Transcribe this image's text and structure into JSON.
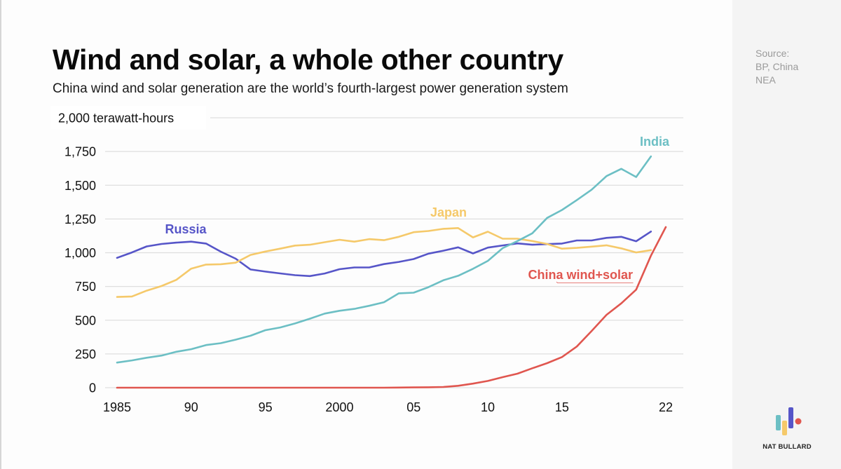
{
  "page": {
    "title": "Wind and solar, a whole other country",
    "subtitle": "China wind and solar generation are the world’s fourth-largest power generation system",
    "source_lines": [
      "Source:",
      "BP, China",
      "NEA"
    ],
    "brand": "NAT BULLARD",
    "brand_colors": [
      "#6cbfc4",
      "#f5c96a",
      "#5655c8",
      "#e0564f"
    ]
  },
  "chart_data": {
    "type": "line",
    "title": "Wind and solar, a whole other country",
    "subtitle": "China wind and solar generation are the world’s fourth-largest power generation system",
    "xlabel": "",
    "ylabel": "terawatt-hours",
    "unit_label": "2,000 terawatt-hours",
    "ylim": [
      0,
      2000
    ],
    "xlim": [
      1985,
      2022
    ],
    "grid": true,
    "legend": "inline labels",
    "y_ticks": [
      0,
      250,
      500,
      750,
      1000,
      1250,
      1500,
      1750
    ],
    "y_tick_labels": [
      "0",
      "250",
      "500",
      "750",
      "1,000",
      "1,250",
      "1,500",
      "1,750"
    ],
    "x_ticks": [
      1985,
      1990,
      1995,
      2000,
      2005,
      2010,
      2015,
      2022
    ],
    "x_tick_labels": [
      "1985",
      "90",
      "95",
      "2000",
      "05",
      "10",
      "15",
      "22"
    ],
    "x": [
      1985,
      1986,
      1987,
      1988,
      1989,
      1990,
      1991,
      1992,
      1993,
      1994,
      1995,
      1996,
      1997,
      1998,
      1999,
      2000,
      2001,
      2002,
      2003,
      2004,
      2005,
      2006,
      2007,
      2008,
      2009,
      2010,
      2011,
      2012,
      2013,
      2014,
      2015,
      2016,
      2017,
      2018,
      2019,
      2020,
      2021,
      2022
    ],
    "series": [
      {
        "name": "Russia",
        "color": "#5655c8",
        "values": [
          962,
          1002,
          1047,
          1065,
          1075,
          1082,
          1068,
          1008,
          956,
          876,
          860,
          847,
          834,
          827,
          846,
          878,
          891,
          891,
          916,
          932,
          953,
          993,
          1015,
          1040,
          995,
          1038,
          1054,
          1069,
          1059,
          1064,
          1068,
          1091,
          1091,
          1110,
          1118,
          1085,
          1157,
          null
        ]
      },
      {
        "name": "Japan",
        "color": "#f5c96a",
        "values": [
          672,
          676,
          719,
          753,
          799,
          882,
          912,
          915,
          926,
          984,
          1009,
          1030,
          1053,
          1059,
          1078,
          1096,
          1082,
          1101,
          1093,
          1118,
          1152,
          1161,
          1177,
          1183,
          1114,
          1156,
          1104,
          1104,
          1087,
          1065,
          1030,
          1036,
          1045,
          1055,
          1032,
          1002,
          1019,
          null
        ]
      },
      {
        "name": "India",
        "color": "#6cbfc4",
        "values": [
          186,
          202,
          222,
          238,
          266,
          285,
          316,
          330,
          356,
          385,
          426,
          446,
          476,
          511,
          549,
          570,
          584,
          607,
          633,
          699,
          704,
          745,
          796,
          829,
          881,
          940,
          1034,
          1087,
          1144,
          1258,
          1317,
          1390,
          1467,
          1568,
          1622,
          1561,
          1714,
          null
        ]
      },
      {
        "name": "China wind+solar",
        "color": "#e0564f",
        "values": [
          0,
          0,
          0,
          0,
          0,
          0,
          0,
          0,
          0,
          0,
          0,
          0,
          0,
          0,
          0,
          0,
          0,
          0,
          0,
          1,
          2,
          3,
          5,
          14,
          30,
          50,
          78,
          104,
          144,
          182,
          227,
          305,
          420,
          540,
          625,
          726,
          978,
          1190
        ]
      }
    ],
    "annotations": [
      {
        "text": "Russia",
        "series": "Russia"
      },
      {
        "text": "Japan",
        "series": "Japan"
      },
      {
        "text": "India",
        "series": "India"
      },
      {
        "text": "China wind+solar",
        "series": "China wind+solar"
      }
    ]
  }
}
